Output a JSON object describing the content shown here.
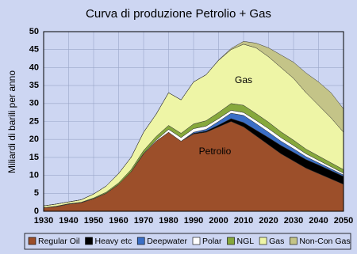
{
  "chart_data": {
    "type": "stacked-area",
    "title": "Curva di produzione Petrolio + Gas",
    "y_label": "Miliardi di barili per anno",
    "annotations": [
      "Gas",
      "Petrolio"
    ],
    "x": [
      1930,
      1935,
      1940,
      1945,
      1950,
      1955,
      1960,
      1965,
      1970,
      1975,
      1980,
      1985,
      1990,
      1995,
      2000,
      2005,
      2010,
      2015,
      2020,
      2025,
      2030,
      2035,
      2040,
      2045,
      2050
    ],
    "xlim": [
      1930,
      2050
    ],
    "xticks": [
      1930,
      1940,
      1950,
      1960,
      1970,
      1980,
      1990,
      2000,
      2010,
      2020,
      2030,
      2040,
      2050
    ],
    "ylim": [
      0,
      50
    ],
    "yticks": [
      0,
      5,
      10,
      15,
      20,
      25,
      30,
      35,
      40,
      45,
      50
    ],
    "grid": true,
    "legend": "bottom",
    "series": [
      {
        "name": "Regular Oil",
        "color": "#9c4f2a",
        "values": [
          1.0,
          1.3,
          2.0,
          2.4,
          3.5,
          5.0,
          7.5,
          11,
          16,
          19.5,
          22,
          19.5,
          21.5,
          22,
          23.5,
          25,
          23.5,
          21,
          18.5,
          16,
          14,
          12,
          10.5,
          9,
          7.5
        ]
      },
      {
        "name": "Heavy etc",
        "color": "#000000",
        "values": [
          0,
          0,
          0,
          0,
          0,
          0,
          0,
          0,
          0,
          0,
          0,
          0,
          0.2,
          0.3,
          0.5,
          0.8,
          1.2,
          1.6,
          2,
          2.3,
          2.4,
          2.4,
          2.4,
          2.3,
          2.2
        ]
      },
      {
        "name": "Deepwater",
        "color": "#3b6fc6",
        "values": [
          0,
          0,
          0,
          0,
          0,
          0,
          0,
          0,
          0,
          0,
          0,
          0,
          0.3,
          0.5,
          1,
          1.5,
          2,
          1.8,
          1.5,
          1.2,
          1,
          0.8,
          0.6,
          0.5,
          0.4
        ]
      },
      {
        "name": "Polar",
        "color": "#ffffff",
        "values": [
          0,
          0,
          0,
          0,
          0,
          0,
          0,
          0,
          0.1,
          0.3,
          0.8,
          1,
          1,
          0.9,
          0.8,
          0.8,
          0.8,
          0.9,
          1,
          1,
          0.9,
          0.8,
          0.7,
          0.6,
          0.5
        ]
      },
      {
        "name": "NGL",
        "color": "#86a83c",
        "values": [
          0,
          0.1,
          0.1,
          0.1,
          0.2,
          0.3,
          0.4,
          0.6,
          0.8,
          1,
          1.1,
          1.2,
          1.3,
          1.5,
          1.7,
          1.9,
          2,
          1.9,
          1.8,
          1.6,
          1.5,
          1.3,
          1.2,
          1.1,
          1
        ]
      },
      {
        "name": "Gas",
        "color": "#eef5a6",
        "values": [
          0.5,
          0.6,
          0.5,
          0.7,
          1.1,
          1.7,
          2.6,
          3.4,
          5.1,
          6.2,
          9.1,
          9.3,
          11.7,
          12.8,
          14.5,
          15,
          17,
          18.3,
          18.2,
          17.9,
          17.2,
          15.7,
          14.1,
          12.5,
          10.4
        ]
      },
      {
        "name": "Non-Con Gas",
        "color": "#c4c488",
        "values": [
          0,
          0,
          0,
          0,
          0,
          0,
          0,
          0,
          0,
          0,
          0,
          0,
          0,
          0,
          0.1,
          0.3,
          0.8,
          1.3,
          2.5,
          3.5,
          4.5,
          5.5,
          6.5,
          7,
          6.5
        ]
      }
    ]
  }
}
